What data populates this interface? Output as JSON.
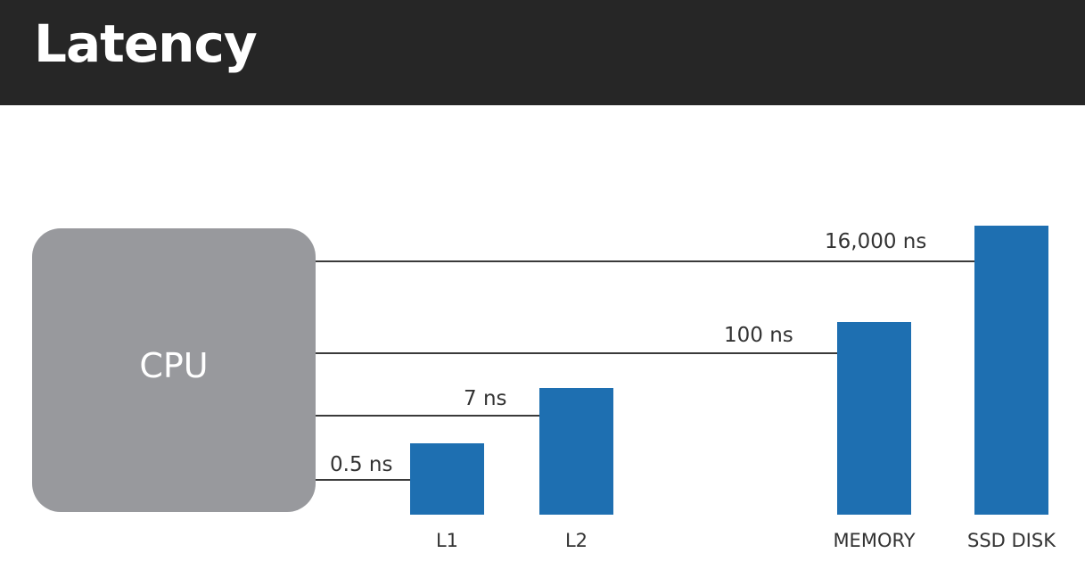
{
  "header": {
    "title": "Latency"
  },
  "cpu": {
    "label": "CPU"
  },
  "levels": [
    {
      "name": "L1",
      "latency": "0.5 ns"
    },
    {
      "name": "L2",
      "latency": "7 ns"
    },
    {
      "name": "MEMORY",
      "latency": "100 ns"
    },
    {
      "name": "SSD DISK",
      "latency": "16,000 ns"
    }
  ],
  "colors": {
    "header_bg": "#262626",
    "cpu_box": "#98999d",
    "bar": "#1e6fb1",
    "line": "#3a3a3a"
  }
}
